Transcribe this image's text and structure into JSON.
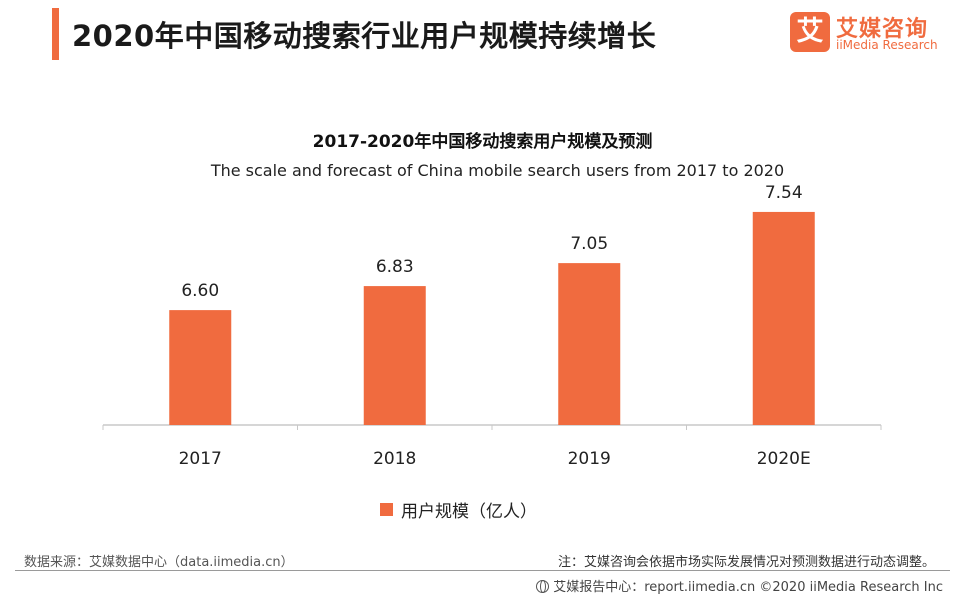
{
  "header": {
    "title": "2020年中国移动搜索行业用户规模持续增长"
  },
  "logo": {
    "mark": "艾",
    "name_cn": "艾媒咨询",
    "name_en": "iiMedia Research"
  },
  "chart_data": {
    "type": "bar",
    "title": "2017-2020年中国移动搜索用户规模及预测",
    "subtitle": "The scale and forecast of China mobile search users from 2017 to 2020",
    "categories": [
      "2017",
      "2018",
      "2019",
      "2020E"
    ],
    "series": [
      {
        "name": "用户规模（亿人）",
        "values": [
          6.6,
          6.83,
          7.05,
          7.54
        ],
        "labels": [
          "6.60",
          "6.83",
          "7.05",
          "7.54"
        ]
      }
    ],
    "ylim": [
      5.5,
      7.75
    ],
    "grid": false,
    "legend": "bottom-center",
    "bar_color": "#f06b3f",
    "axis_color": "#c8c8c8"
  },
  "footer": {
    "source": "数据来源：艾媒数据中心（data.iimedia.cn）",
    "note": "注：艾媒咨询会依据市场实际发展情况对预测数据进行动态调整。",
    "copyright": "艾媒报告中心：report.iimedia.cn  ©2020  iiMedia Research  Inc"
  },
  "colors": {
    "accent": "#f06b3f"
  }
}
